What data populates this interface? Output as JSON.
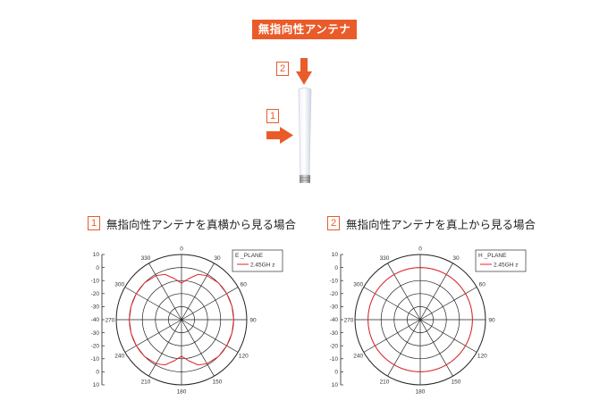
{
  "header": {
    "title": "無指向性アンテナ"
  },
  "antenna": {
    "markers": [
      {
        "num": "2",
        "direction": "down"
      },
      {
        "num": "1",
        "direction": "right"
      }
    ],
    "arrow_color": "#ea5b2a"
  },
  "views": [
    {
      "num": "1",
      "caption": "無指向性アンテナを真横から見る場合"
    },
    {
      "num": "2",
      "caption": "無指向性アンテナを真上から見る場合"
    }
  ],
  "chart_data": [
    {
      "type": "polar",
      "legend": {
        "title": "E _PLANE",
        "series": "2.45GH z"
      },
      "radial_ticks": [
        "10",
        "0",
        "-10",
        "-20",
        "-30",
        "-40",
        "-30",
        "-20",
        "-10",
        "0",
        "10"
      ],
      "radial_range": [
        -40,
        10
      ],
      "angle_labels": [
        "0",
        "30",
        "60",
        "90",
        "120",
        "150",
        "180",
        "210",
        "240",
        "270",
        "300",
        "330"
      ],
      "series": [
        {
          "color": "#e0262b",
          "angles_deg": [
            0,
            10,
            20,
            30,
            45,
            60,
            75,
            90,
            105,
            120,
            135,
            150,
            160,
            170,
            180
          ],
          "values_db": [
            -12,
            -8,
            -3,
            -1,
            0,
            0,
            0,
            0,
            0,
            0,
            0,
            -1,
            -3,
            -8,
            -12
          ]
        }
      ]
    },
    {
      "type": "polar",
      "legend": {
        "title": "H _PLANE",
        "series": "2.45GH z"
      },
      "radial_ticks": [
        "10",
        "0",
        "-10",
        "-20",
        "-30",
        "-40",
        "-30",
        "-20",
        "-10",
        "0",
        "10"
      ],
      "radial_range": [
        -40,
        10
      ],
      "angle_labels": [
        "0",
        "30",
        "60",
        "90",
        "120",
        "150",
        "180",
        "210",
        "240",
        "270",
        "300",
        "330"
      ],
      "series": [
        {
          "color": "#e0262b",
          "angles_deg": [
            0,
            30,
            60,
            90,
            120,
            150,
            180,
            210,
            240,
            270,
            300,
            330
          ],
          "values_db": [
            0,
            0,
            0,
            0,
            0,
            0,
            0,
            0,
            0,
            0,
            0,
            0
          ]
        }
      ]
    }
  ]
}
